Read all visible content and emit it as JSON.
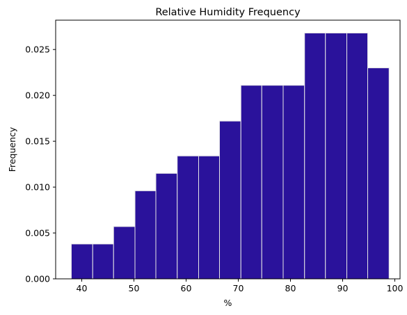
{
  "chart_data": {
    "type": "bar",
    "title": "Relative Humidity Frequency",
    "xlabel": "%",
    "ylabel": "Frequency",
    "bins": [
      {
        "x0": 38.0,
        "x1": 42.1,
        "value": 0.0038
      },
      {
        "x0": 42.1,
        "x1": 46.1,
        "value": 0.0038
      },
      {
        "x0": 46.1,
        "x1": 50.2,
        "value": 0.0057
      },
      {
        "x0": 50.2,
        "x1": 54.2,
        "value": 0.0096
      },
      {
        "x0": 54.2,
        "x1": 58.3,
        "value": 0.0115
      },
      {
        "x0": 58.3,
        "x1": 62.4,
        "value": 0.0134
      },
      {
        "x0": 62.4,
        "x1": 66.4,
        "value": 0.0134
      },
      {
        "x0": 66.4,
        "x1": 70.5,
        "value": 0.0172
      },
      {
        "x0": 70.5,
        "x1": 74.5,
        "value": 0.0211
      },
      {
        "x0": 74.5,
        "x1": 78.6,
        "value": 0.0211
      },
      {
        "x0": 78.6,
        "x1": 82.7,
        "value": 0.0211
      },
      {
        "x0": 82.7,
        "x1": 86.7,
        "value": 0.0268
      },
      {
        "x0": 86.7,
        "x1": 90.8,
        "value": 0.0268
      },
      {
        "x0": 90.8,
        "x1": 94.8,
        "value": 0.0268
      },
      {
        "x0": 94.8,
        "x1": 98.9,
        "value": 0.023
      }
    ],
    "xlim": [
      35,
      101
    ],
    "ylim": [
      0,
      0.0282
    ],
    "xticks": [
      "40",
      "50",
      "60",
      "70",
      "80",
      "90",
      "100"
    ],
    "yticks": [
      "0.000",
      "0.005",
      "0.010",
      "0.015",
      "0.020",
      "0.025"
    ],
    "bar_color": "#2a129b",
    "edge_color": "#e6e6e6",
    "grid": false,
    "legend": "none"
  }
}
